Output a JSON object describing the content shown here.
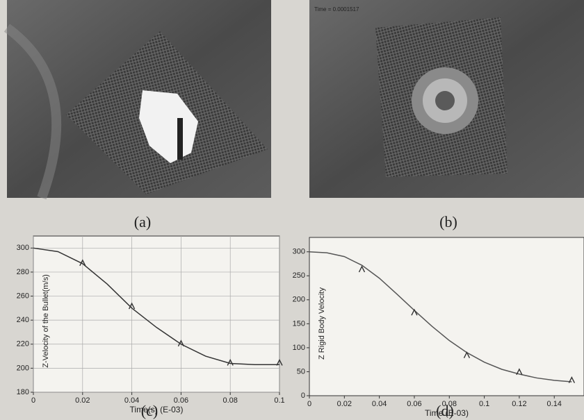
{
  "images": [
    {
      "caption": "(a)"
    },
    {
      "caption": "(b)",
      "overlay": "Time =  0.0001517"
    }
  ],
  "chart_data": [
    {
      "type": "line",
      "caption": "(c)",
      "xlabel": "Time(s) (E-03)",
      "ylabel": "Z-Velocity of the Bullet(m/s)",
      "xlim": [
        0,
        0.1
      ],
      "xticks": [
        0,
        0.02,
        0.04,
        0.06,
        0.08,
        0.1
      ],
      "ylim": [
        180,
        310
      ],
      "yticks": [
        180,
        200,
        220,
        240,
        260,
        280,
        300
      ],
      "grid": true,
      "series": [
        {
          "color": "#333333",
          "x": [
            0,
            0.01,
            0.02,
            0.03,
            0.04,
            0.05,
            0.06,
            0.07,
            0.08,
            0.09,
            0.1
          ],
          "values": [
            300,
            297,
            287,
            270,
            250,
            234,
            220,
            210,
            204,
            203,
            203
          ]
        },
        {
          "color": "#333333",
          "marker": "^",
          "x": [
            0.02,
            0.04,
            0.06,
            0.08,
            0.1
          ],
          "values": [
            287,
            251,
            220,
            204,
            204
          ]
        }
      ]
    },
    {
      "type": "line",
      "caption": "(d)",
      "xlabel": "Time (E-03)",
      "ylabel": "Z Rigid Body Velocity",
      "xlim": [
        0,
        0.157
      ],
      "xticks": [
        0,
        0.02,
        0.04,
        0.06,
        0.08,
        0.1,
        0.12,
        0.14
      ],
      "ylim": [
        0,
        330
      ],
      "yticks": [
        0,
        50,
        100,
        150,
        200,
        250,
        300
      ],
      "grid": false,
      "series": [
        {
          "color": "#555555",
          "x": [
            0,
            0.01,
            0.02,
            0.03,
            0.04,
            0.05,
            0.06,
            0.07,
            0.08,
            0.09,
            0.1,
            0.11,
            0.12,
            0.13,
            0.14,
            0.15
          ],
          "values": [
            300,
            298,
            290,
            272,
            245,
            212,
            178,
            145,
            115,
            90,
            70,
            55,
            45,
            37,
            32,
            29
          ]
        },
        {
          "color": "#333333",
          "marker": "^",
          "x": [
            0.03,
            0.06,
            0.09,
            0.12,
            0.15
          ],
          "values": [
            262,
            172,
            83,
            48,
            31
          ]
        }
      ]
    }
  ]
}
